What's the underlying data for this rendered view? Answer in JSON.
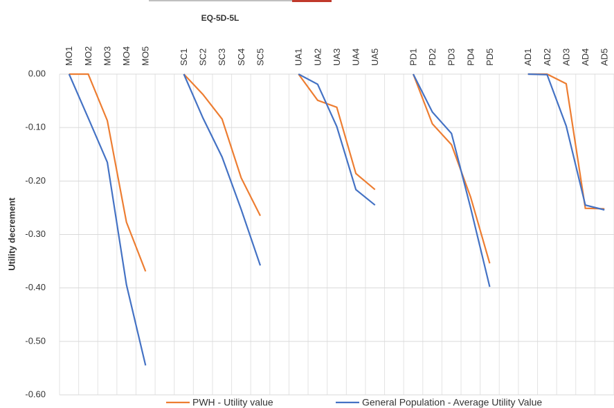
{
  "chart_data": {
    "type": "line",
    "title": "EQ-5D-5L",
    "y_label": "Utility decrement",
    "categories": [
      "MO1",
      "MO2",
      "MO3",
      "MO4",
      "MO5",
      null,
      "SC1",
      "SC2",
      "SC3",
      "SC4",
      "SC5",
      null,
      "UA1",
      "UA2",
      "UA3",
      "UA4",
      "UA5",
      null,
      "PD1",
      "PD2",
      "PD3",
      "PD4",
      "PD5",
      null,
      "AD1",
      "AD2",
      "AD3",
      "AD4",
      "AD5"
    ],
    "series": [
      {
        "name": "PWH - Utility value",
        "color": "#ed7d31",
        "values": [
          0,
          0,
          -0.087,
          -0.277,
          -0.369,
          null,
          0,
          -0.038,
          -0.084,
          -0.194,
          -0.265,
          null,
          0,
          -0.049,
          -0.062,
          -0.186,
          -0.216,
          null,
          0,
          -0.093,
          -0.132,
          -0.23,
          -0.354,
          null,
          0,
          0,
          -0.018,
          -0.251,
          -0.252
        ]
      },
      {
        "name": "General Population - Average Utility Value",
        "color": "#4472c4",
        "values": [
          0,
          -0.082,
          -0.165,
          -0.394,
          -0.545,
          null,
          0,
          -0.082,
          -0.155,
          -0.253,
          -0.358,
          null,
          0,
          -0.019,
          -0.098,
          -0.216,
          -0.245,
          null,
          0,
          -0.071,
          -0.111,
          -0.25,
          -0.398,
          null,
          0,
          -0.001,
          -0.097,
          -0.245,
          -0.254
        ]
      }
    ],
    "ylim": [
      -0.6,
      0
    ],
    "yticks": [
      {
        "value": 0,
        "label": "0.00"
      },
      {
        "value": -0.1,
        "label": "-0.10"
      },
      {
        "value": -0.2,
        "label": "-0.20"
      },
      {
        "value": -0.3,
        "label": "-0.30"
      },
      {
        "value": -0.4,
        "label": "-0.40"
      },
      {
        "value": -0.5,
        "label": "-0.50"
      },
      {
        "value": -0.6,
        "label": "-0.60"
      }
    ],
    "grid": true,
    "legend": "bottom"
  }
}
